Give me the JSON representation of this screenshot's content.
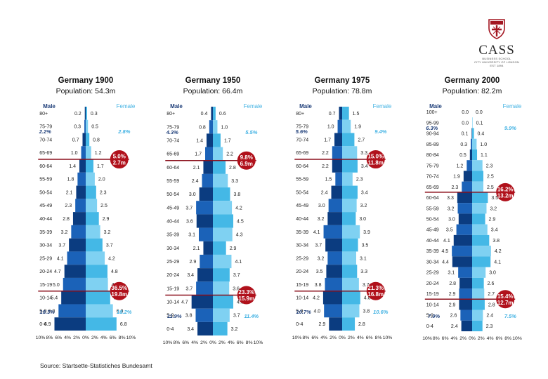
{
  "logo": {
    "name": "CASS",
    "line1": "BUSINESS SCHOOL",
    "line2": "CITY UNIVERSITY OF LONDON",
    "line3": "EST 1894"
  },
  "source": "Source: Startsette-Statistiches Bundesamt",
  "colors": {
    "male_dark": "#0b3c80",
    "male_light": "#1b62b8",
    "female": "#44b8e6",
    "female_light": "#7fd1f2",
    "line": "#8b0f1b",
    "badge": "#b0111b",
    "side_male": "#1f3f7a",
    "side_female": "#42b2e3"
  },
  "chart_data": [
    {
      "type": "bar",
      "title": "Germany 1900",
      "subtitle": "Population: 54.3m",
      "male_label": "Male",
      "female_label": "Female",
      "x_ticks": [
        "10%",
        "8%",
        "6%",
        "4%",
        "2%",
        "0%",
        "2%",
        "4%",
        "6%",
        "8%",
        "10%"
      ],
      "categories": [
        "80+",
        "75-79",
        "70-74",
        "65-69",
        "60-64",
        "55-59",
        "50-54",
        "45-49",
        "40-44",
        "35-39",
        "30-34",
        "25-29",
        "20-24",
        "15-19",
        "10-14",
        "5-9",
        "0-4"
      ],
      "series": [
        {
          "name": "Male",
          "values": [
            0.2,
            0.3,
            0.7,
            1.0,
            1.4,
            1.8,
            2.1,
            2.3,
            2.8,
            3.2,
            3.7,
            4.1,
            4.7,
            5.0,
            5.4,
            6.0,
            6.9
          ]
        },
        {
          "name": "Female",
          "values": [
            0.3,
            0.5,
            0.8,
            1.2,
            1.7,
            2.0,
            2.3,
            2.5,
            2.9,
            3.2,
            3.7,
            4.2,
            4.8,
            4.9,
            5.4,
            6.0,
            6.8
          ]
        }
      ],
      "elderly": {
        "male": "2.2%",
        "female": "2.8%"
      },
      "youth": {
        "male": "18.3%",
        "female": "18.2%"
      },
      "bands": [
        {
          "after": "65-69",
          "pct": "5.0%",
          "num": "2.7m"
        },
        {
          "after": "15-19",
          "pct": "36.5%",
          "num": "19.8m"
        }
      ]
    },
    {
      "type": "bar",
      "title": "Germany 1950",
      "subtitle": "Population: 66.4m",
      "male_label": "Male",
      "female_label": "Female",
      "x_ticks": [
        "10%",
        "8%",
        "6%",
        "4%",
        "2%",
        "0%",
        "2%",
        "4%",
        "6%",
        "8%",
        "10%"
      ],
      "categories": [
        "80+",
        "75-79",
        "70-74",
        "65-69",
        "60-64",
        "55-59",
        "50-54",
        "45-49",
        "40-44",
        "35-39",
        "30-34",
        "25-29",
        "20-24",
        "15-19",
        "10-14",
        "5-9",
        "0-4"
      ],
      "series": [
        {
          "name": "Male",
          "values": [
            0.4,
            0.8,
            1.4,
            1.7,
            2.1,
            2.4,
            3.0,
            3.7,
            3.6,
            3.1,
            2.1,
            2.9,
            3.4,
            3.7,
            4.7,
            3.8,
            3.4
          ]
        },
        {
          "name": "Female",
          "values": [
            0.6,
            1.0,
            1.7,
            2.2,
            2.8,
            3.3,
            3.8,
            4.2,
            4.5,
            4.3,
            2.9,
            4.1,
            3.7,
            3.6,
            4.5,
            3.7,
            3.2
          ]
        }
      ],
      "elderly": {
        "male": "4.3%",
        "female": "5.5%"
      },
      "youth": {
        "male": "11.9%",
        "female": "11.4%"
      },
      "bands": [
        {
          "after": "65-69",
          "pct": "9.8%",
          "num": "6.9m"
        },
        {
          "after": "15-19",
          "pct": "23.3%",
          "num": "15.9m"
        }
      ]
    },
    {
      "type": "bar",
      "title": "Germany 1975",
      "subtitle": "Population: 78.8m",
      "male_label": "Male",
      "female_label": "Female",
      "x_ticks": [
        "10%",
        "8%",
        "6%",
        "4%",
        "2%",
        "0%",
        "2%",
        "4%",
        "6%",
        "8%",
        "10%"
      ],
      "categories": [
        "80+",
        "75-79",
        "70-74",
        "65-69",
        "60-64",
        "55-59",
        "50-54",
        "45-49",
        "40-44",
        "35-39",
        "30-34",
        "25-29",
        "20-24",
        "15-19",
        "10-14",
        "5-9",
        "0-4"
      ],
      "series": [
        {
          "name": "Male",
          "values": [
            0.7,
            1.0,
            1.7,
            2.2,
            2.2,
            1.5,
            2.4,
            3.0,
            3.2,
            4.1,
            3.7,
            3.2,
            3.5,
            3.8,
            4.2,
            4.0,
            2.9
          ]
        },
        {
          "name": "Female",
          "values": [
            1.5,
            1.9,
            2.7,
            3.3,
            3.4,
            2.3,
            3.4,
            3.2,
            3.0,
            3.9,
            3.5,
            3.1,
            3.3,
            3.7,
            4.0,
            3.8,
            2.8
          ]
        }
      ],
      "elderly": {
        "male": "5.6%",
        "female": "9.4%"
      },
      "youth": {
        "male": "10.7%",
        "female": "10.6%"
      },
      "bands": [
        {
          "after": "65-69",
          "pct": "15.0%",
          "num": "11.8m"
        },
        {
          "after": "15-19",
          "pct": "21.3%",
          "num": "16.8m"
        }
      ]
    },
    {
      "type": "bar",
      "title": "Germany 2000",
      "subtitle": "Population: 82.2m",
      "male_label": "Male",
      "female_label": "Female",
      "x_ticks": [
        "10%",
        "8%",
        "6%",
        "4%",
        "2%",
        "0%",
        "2%",
        "4%",
        "6%",
        "8%",
        "10%"
      ],
      "categories": [
        "100+",
        "95-99",
        "90-94",
        "85-89",
        "80-84",
        "75-79",
        "70-74",
        "65-69",
        "60-64",
        "55-59",
        "50-54",
        "45-49",
        "40-44",
        "35-39",
        "30-34",
        "25-29",
        "20-24",
        "15-19",
        "10-14",
        "5-9",
        "0-4"
      ],
      "series": [
        {
          "name": "Male",
          "values": [
            0.0,
            0.0,
            0.1,
            0.3,
            0.5,
            1.2,
            1.9,
            2.3,
            3.3,
            3.2,
            3.0,
            3.5,
            4.1,
            4.5,
            4.4,
            3.1,
            2.8,
            2.9,
            2.9,
            2.6,
            2.4
          ]
        },
        {
          "name": "Female",
          "values": [
            0.0,
            0.1,
            0.4,
            1.0,
            1.1,
            2.3,
            2.5,
            2.5,
            3.5,
            3.2,
            2.9,
            3.4,
            3.8,
            4.2,
            4.1,
            3.0,
            2.6,
            2.7,
            2.8,
            2.4,
            2.3
          ]
        }
      ],
      "elderly": {
        "male": "6.3%",
        "female": "9.9%"
      },
      "youth": {
        "male": "7.9%",
        "female": "7.5%"
      },
      "bands": [
        {
          "after": "65-69",
          "pct": "16.2%",
          "num": "13.2m"
        },
        {
          "after": "15-19",
          "pct": "15.4%",
          "num": "12.7m"
        }
      ]
    }
  ]
}
